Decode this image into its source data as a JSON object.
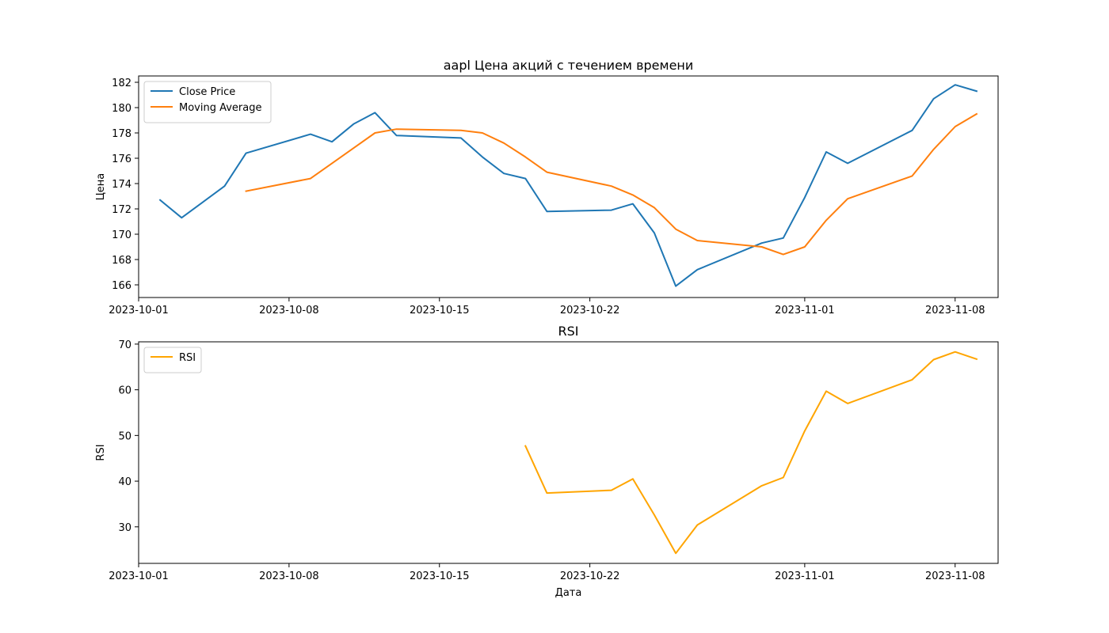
{
  "chart_data": [
    {
      "type": "line",
      "title": "aapl Цена акций с течением времени",
      "xlabel": "",
      "ylabel": "Цена",
      "xlim": [
        "2023-10-01",
        "2023-11-10"
      ],
      "ylim": [
        165,
        182.5
      ],
      "x_ticks": [
        "2023-10-01",
        "2023-10-08",
        "2023-10-15",
        "2023-10-22",
        "2023-11-01",
        "2023-11-08"
      ],
      "y_ticks": [
        166,
        168,
        170,
        172,
        174,
        176,
        178,
        180,
        182
      ],
      "legend_position": "top-left",
      "grid": false,
      "series": [
        {
          "name": "Close Price",
          "color": "#1f77b4",
          "x": [
            "2023-10-02",
            "2023-10-03",
            "2023-10-05",
            "2023-10-06",
            "2023-10-09",
            "2023-10-10",
            "2023-10-11",
            "2023-10-12",
            "2023-10-13",
            "2023-10-16",
            "2023-10-17",
            "2023-10-18",
            "2023-10-19",
            "2023-10-20",
            "2023-10-23",
            "2023-10-24",
            "2023-10-25",
            "2023-10-26",
            "2023-10-27",
            "2023-10-30",
            "2023-10-31",
            "2023-11-01",
            "2023-11-02",
            "2023-11-03",
            "2023-11-06",
            "2023-11-07",
            "2023-11-08",
            "2023-11-09"
          ],
          "values": [
            172.7,
            171.3,
            173.8,
            176.4,
            177.9,
            177.3,
            178.7,
            179.6,
            177.8,
            177.6,
            176.1,
            174.8,
            174.4,
            171.8,
            171.9,
            172.4,
            170.1,
            165.9,
            167.2,
            169.3,
            169.7,
            172.9,
            176.5,
            175.6,
            178.2,
            180.7,
            181.8,
            181.3
          ]
        },
        {
          "name": "Moving Average",
          "color": "#ff7f0e",
          "x": [
            "2023-10-06",
            "2023-10-09",
            "2023-10-10",
            "2023-10-11",
            "2023-10-12",
            "2023-10-13",
            "2023-10-16",
            "2023-10-17",
            "2023-10-18",
            "2023-10-19",
            "2023-10-20",
            "2023-10-23",
            "2023-10-24",
            "2023-10-25",
            "2023-10-26",
            "2023-10-27",
            "2023-10-30",
            "2023-10-31",
            "2023-11-01",
            "2023-11-02",
            "2023-11-03",
            "2023-11-06",
            "2023-11-07",
            "2023-11-08",
            "2023-11-09"
          ],
          "values": [
            173.4,
            174.4,
            175.6,
            176.8,
            178.0,
            178.3,
            178.2,
            178.0,
            177.2,
            176.1,
            174.9,
            173.8,
            173.1,
            172.1,
            170.4,
            169.5,
            169.0,
            168.4,
            169.0,
            171.1,
            172.8,
            174.6,
            176.7,
            178.5,
            179.5
          ]
        }
      ]
    },
    {
      "type": "line",
      "title": "RSI",
      "xlabel": "Дата",
      "ylabel": "RSI",
      "xlim": [
        "2023-10-01",
        "2023-11-10"
      ],
      "ylim": [
        22,
        70.5
      ],
      "x_ticks": [
        "2023-10-01",
        "2023-10-08",
        "2023-10-15",
        "2023-10-22",
        "2023-11-01",
        "2023-11-08"
      ],
      "y_ticks": [
        30,
        40,
        50,
        60,
        70
      ],
      "legend_position": "top-left",
      "grid": false,
      "series": [
        {
          "name": "RSI",
          "color": "#ffa500",
          "x": [
            "2023-10-19",
            "2023-10-20",
            "2023-10-23",
            "2023-10-24",
            "2023-10-25",
            "2023-10-26",
            "2023-10-27",
            "2023-10-30",
            "2023-10-31",
            "2023-11-01",
            "2023-11-02",
            "2023-11-03",
            "2023-11-06",
            "2023-11-07",
            "2023-11-08",
            "2023-11-09"
          ],
          "values": [
            47.7,
            37.4,
            38.0,
            40.5,
            32.6,
            24.2,
            30.4,
            39.0,
            40.8,
            51.0,
            59.7,
            57.0,
            62.2,
            66.6,
            68.3,
            66.7
          ]
        }
      ]
    }
  ]
}
